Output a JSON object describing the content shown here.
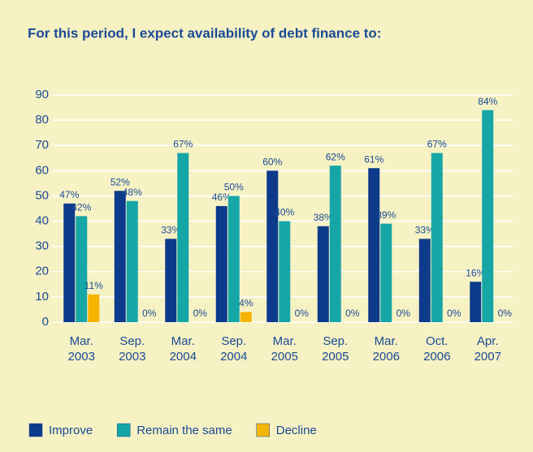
{
  "chart_data": {
    "type": "bar",
    "title": "For this period, I expect availability of debt finance to:",
    "categories": [
      [
        "Mar.",
        "2003"
      ],
      [
        "Sep.",
        "2003"
      ],
      [
        "Mar.",
        "2004"
      ],
      [
        "Sep.",
        "2004"
      ],
      [
        "Mar.",
        "2005"
      ],
      [
        "Sep.",
        "2005"
      ],
      [
        "Mar.",
        "2006"
      ],
      [
        "Oct.",
        "2006"
      ],
      [
        "Apr.",
        "2007"
      ]
    ],
    "series": [
      {
        "name": "Improve",
        "color": "#0d3a8a",
        "values": [
          47,
          52,
          33,
          46,
          60,
          38,
          61,
          33,
          16
        ],
        "value_labels": [
          "47%",
          "52%",
          "33%",
          "46%",
          "60%",
          "38%",
          "61%",
          "33%",
          "16%"
        ]
      },
      {
        "name": "Remain the same",
        "color": "#17a6a6",
        "values": [
          42,
          48,
          67,
          50,
          40,
          62,
          39,
          67,
          84
        ],
        "value_labels": [
          "42%",
          "48%",
          "67%",
          "50%",
          "40%",
          "62%",
          "39%",
          "67%",
          "84%"
        ]
      },
      {
        "name": "Decline",
        "color": "#f5b400",
        "values": [
          11,
          0,
          0,
          4,
          0,
          0,
          0,
          0,
          0
        ],
        "value_labels": [
          "11%",
          "0%",
          "0%",
          "4%",
          "0%",
          "0%",
          "0%",
          "0%",
          "0%"
        ]
      }
    ],
    "ylim": [
      0,
      90
    ],
    "yticks": [
      0,
      10,
      20,
      30,
      40,
      50,
      60,
      70,
      80,
      90
    ],
    "grid": true
  }
}
